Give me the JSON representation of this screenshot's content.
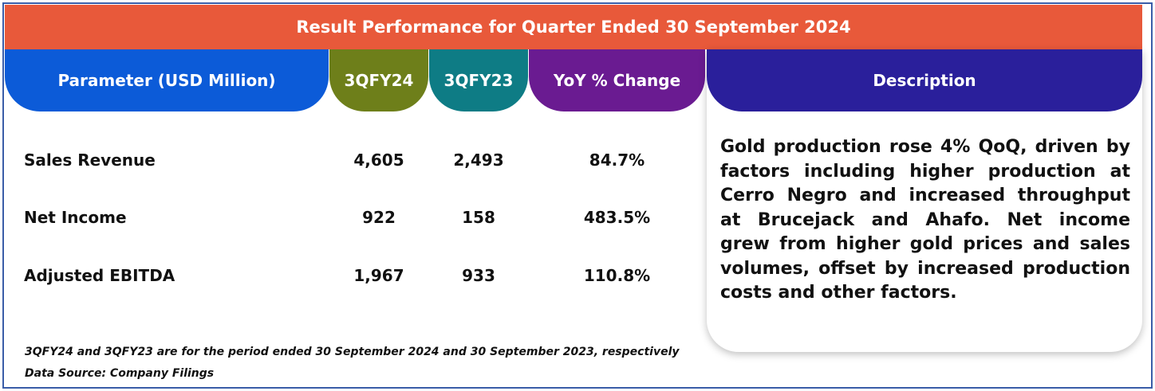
{
  "title": "Result Performance for Quarter Ended 30 September 2024",
  "headers": {
    "parameter": "Parameter (USD Million)",
    "q1": "3QFY24",
    "q2": "3QFY23",
    "yoy": "YoY % Change",
    "description": "Description"
  },
  "rows": [
    {
      "name": "Sales Revenue",
      "q1": "4,605",
      "q2": "2,493",
      "yoy": "84.7%"
    },
    {
      "name": "Net Income",
      "q1": "922",
      "q2": "158",
      "yoy": "483.5%"
    },
    {
      "name": "Adjusted EBITDA",
      "q1": "1,967",
      "q2": "933",
      "yoy": "110.8%"
    }
  ],
  "description": "Gold production rose 4% QoQ, driven by factors including higher production at Cerro Negro and increased throughput at Brucejack and Ahafo. Net income grew from higher gold prices and sales volumes, offset by increased production costs and other factors.",
  "footnotes": {
    "period": "3QFY24 and 3QFY23 are for the period ended 30 September 2024 and 30 September 2023, respectively",
    "source": "Data Source: Company Filings"
  },
  "colors": {
    "title_bar": "#e8593a",
    "parameter_header": "#0c5bd8",
    "q1_header": "#6e7f1a",
    "q2_header": "#0e7c85",
    "yoy_header": "#6a1b91",
    "description_header": "#2a1f9b",
    "border": "#3a5da8"
  }
}
